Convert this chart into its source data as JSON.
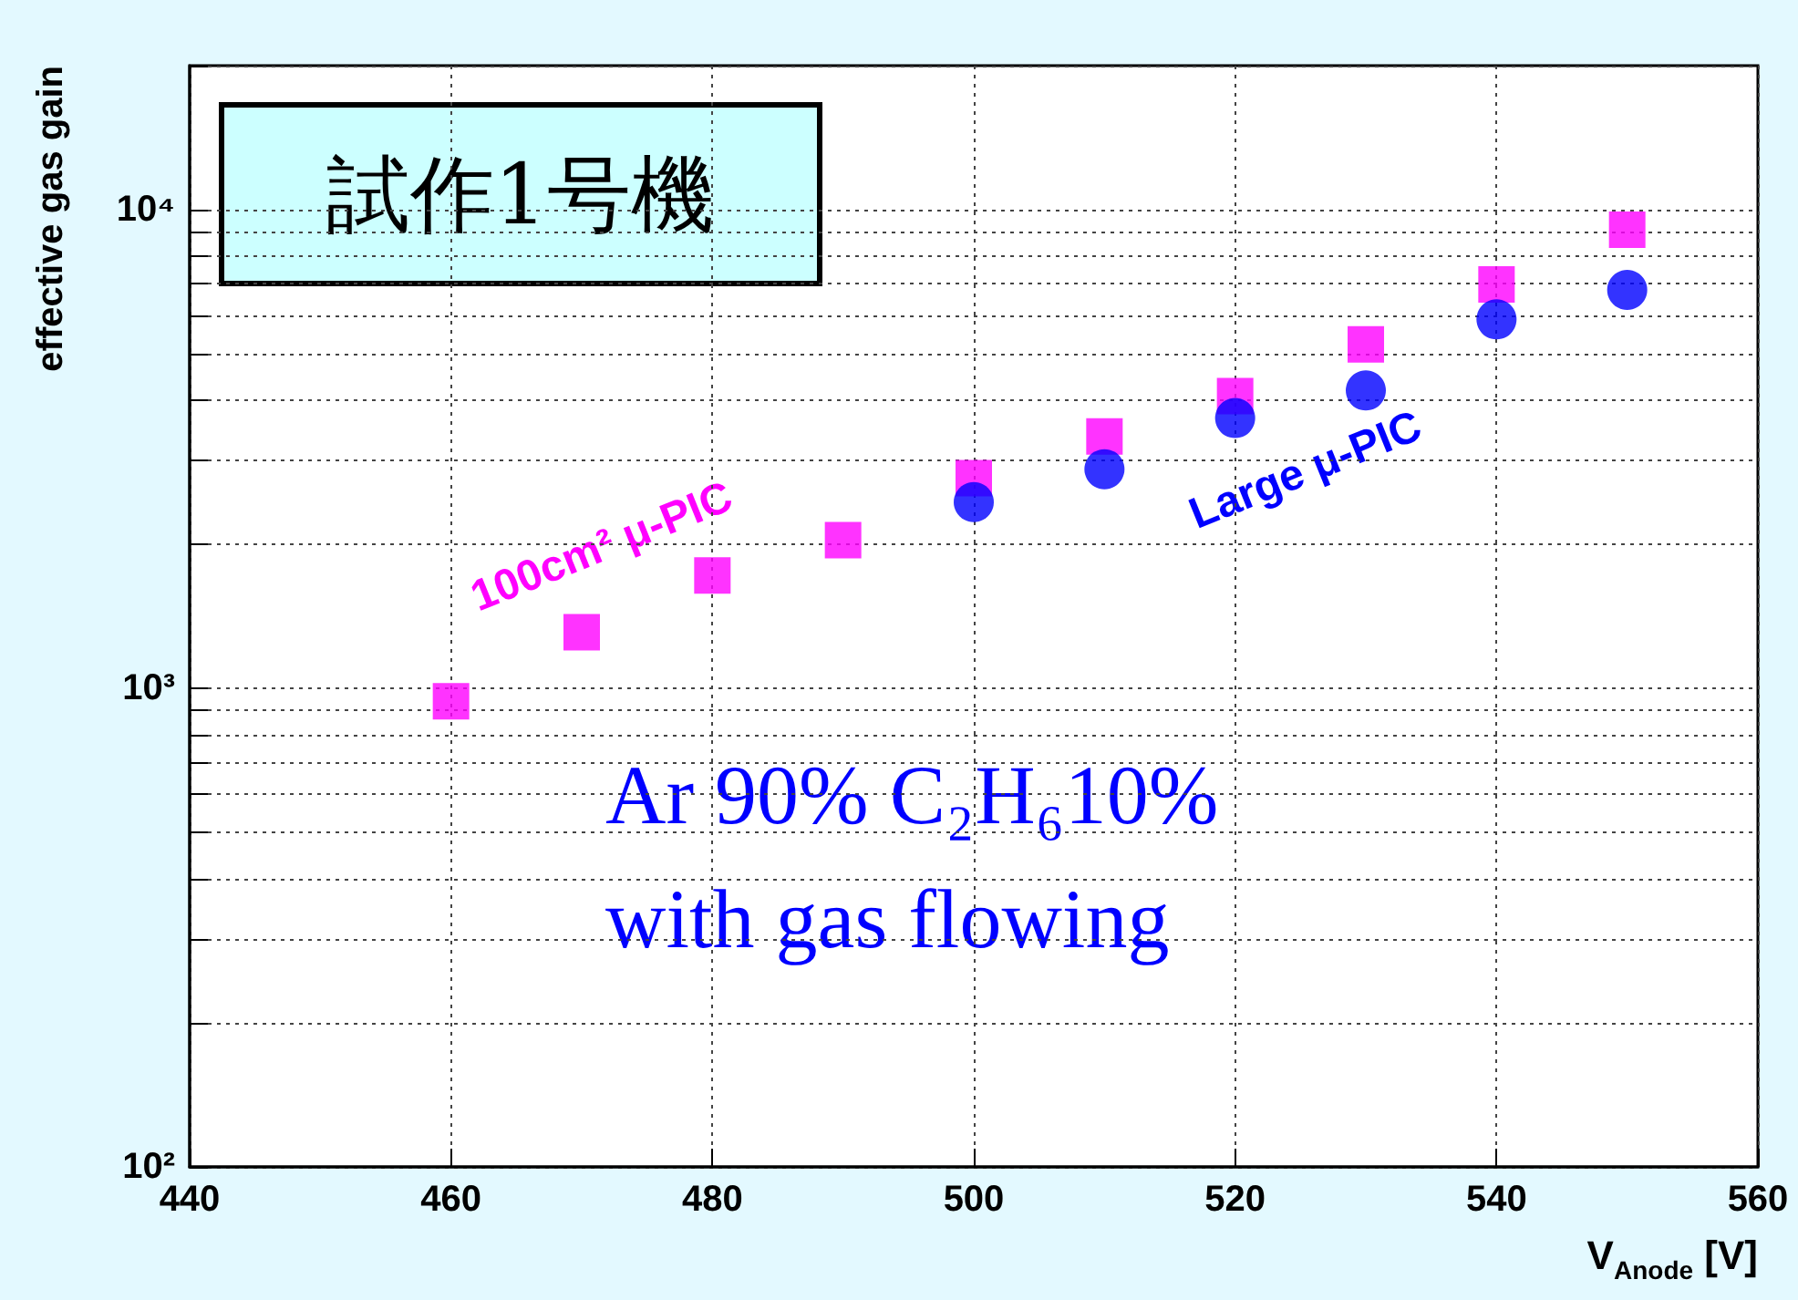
{
  "chart_data": {
    "type": "scatter",
    "title": "試作1号機",
    "xlabel": "V$_{Anode}$ [V]",
    "ylabel": "effective gas gain",
    "annotations": [
      "Ar 90% C₂H₆10%",
      "with gas flowing"
    ],
    "log": "y",
    "grid": true,
    "legend": false,
    "xlim": [
      440,
      560
    ],
    "xticks": [
      440,
      460,
      480,
      500,
      520,
      540,
      560
    ],
    "ylim": [
      100,
      20000
    ],
    "yticks": [
      {
        "value": 100,
        "label": "10²"
      },
      {
        "value": 200,
        "label": null
      },
      {
        "value": 300,
        "label": null
      },
      {
        "value": 400,
        "label": null
      },
      {
        "value": 500,
        "label": null
      },
      {
        "value": 600,
        "label": null
      },
      {
        "value": 700,
        "label": null
      },
      {
        "value": 800,
        "label": null
      },
      {
        "value": 900,
        "label": null
      },
      {
        "value": 1000,
        "label": "10³"
      },
      {
        "value": 2000,
        "label": null
      },
      {
        "value": 3000,
        "label": null
      },
      {
        "value": 4000,
        "label": null
      },
      {
        "value": 5000,
        "label": null
      },
      {
        "value": 6000,
        "label": null
      },
      {
        "value": 7000,
        "label": null
      },
      {
        "value": 8000,
        "label": null
      },
      {
        "value": 9000,
        "label": null
      },
      {
        "value": 10000,
        "label": "10⁴"
      },
      {
        "value": 20000,
        "label": null
      }
    ],
    "series": [
      {
        "name": "100cm² μ-PIC",
        "color": "#ff00ff",
        "marker": "square",
        "x": [
          460,
          470,
          480,
          490,
          500,
          510,
          520,
          530,
          540,
          550
        ],
        "values": [
          940,
          1310,
          1720,
          2040,
          2750,
          3360,
          4080,
          5230,
          6980,
          9080
        ]
      },
      {
        "name": "Large μ-PIC",
        "color": "#0000ff",
        "marker": "circle",
        "x": [
          500,
          510,
          520,
          530,
          540,
          550
        ],
        "values": [
          2450,
          2870,
          3670,
          4190,
          5900,
          6800
        ]
      }
    ]
  }
}
